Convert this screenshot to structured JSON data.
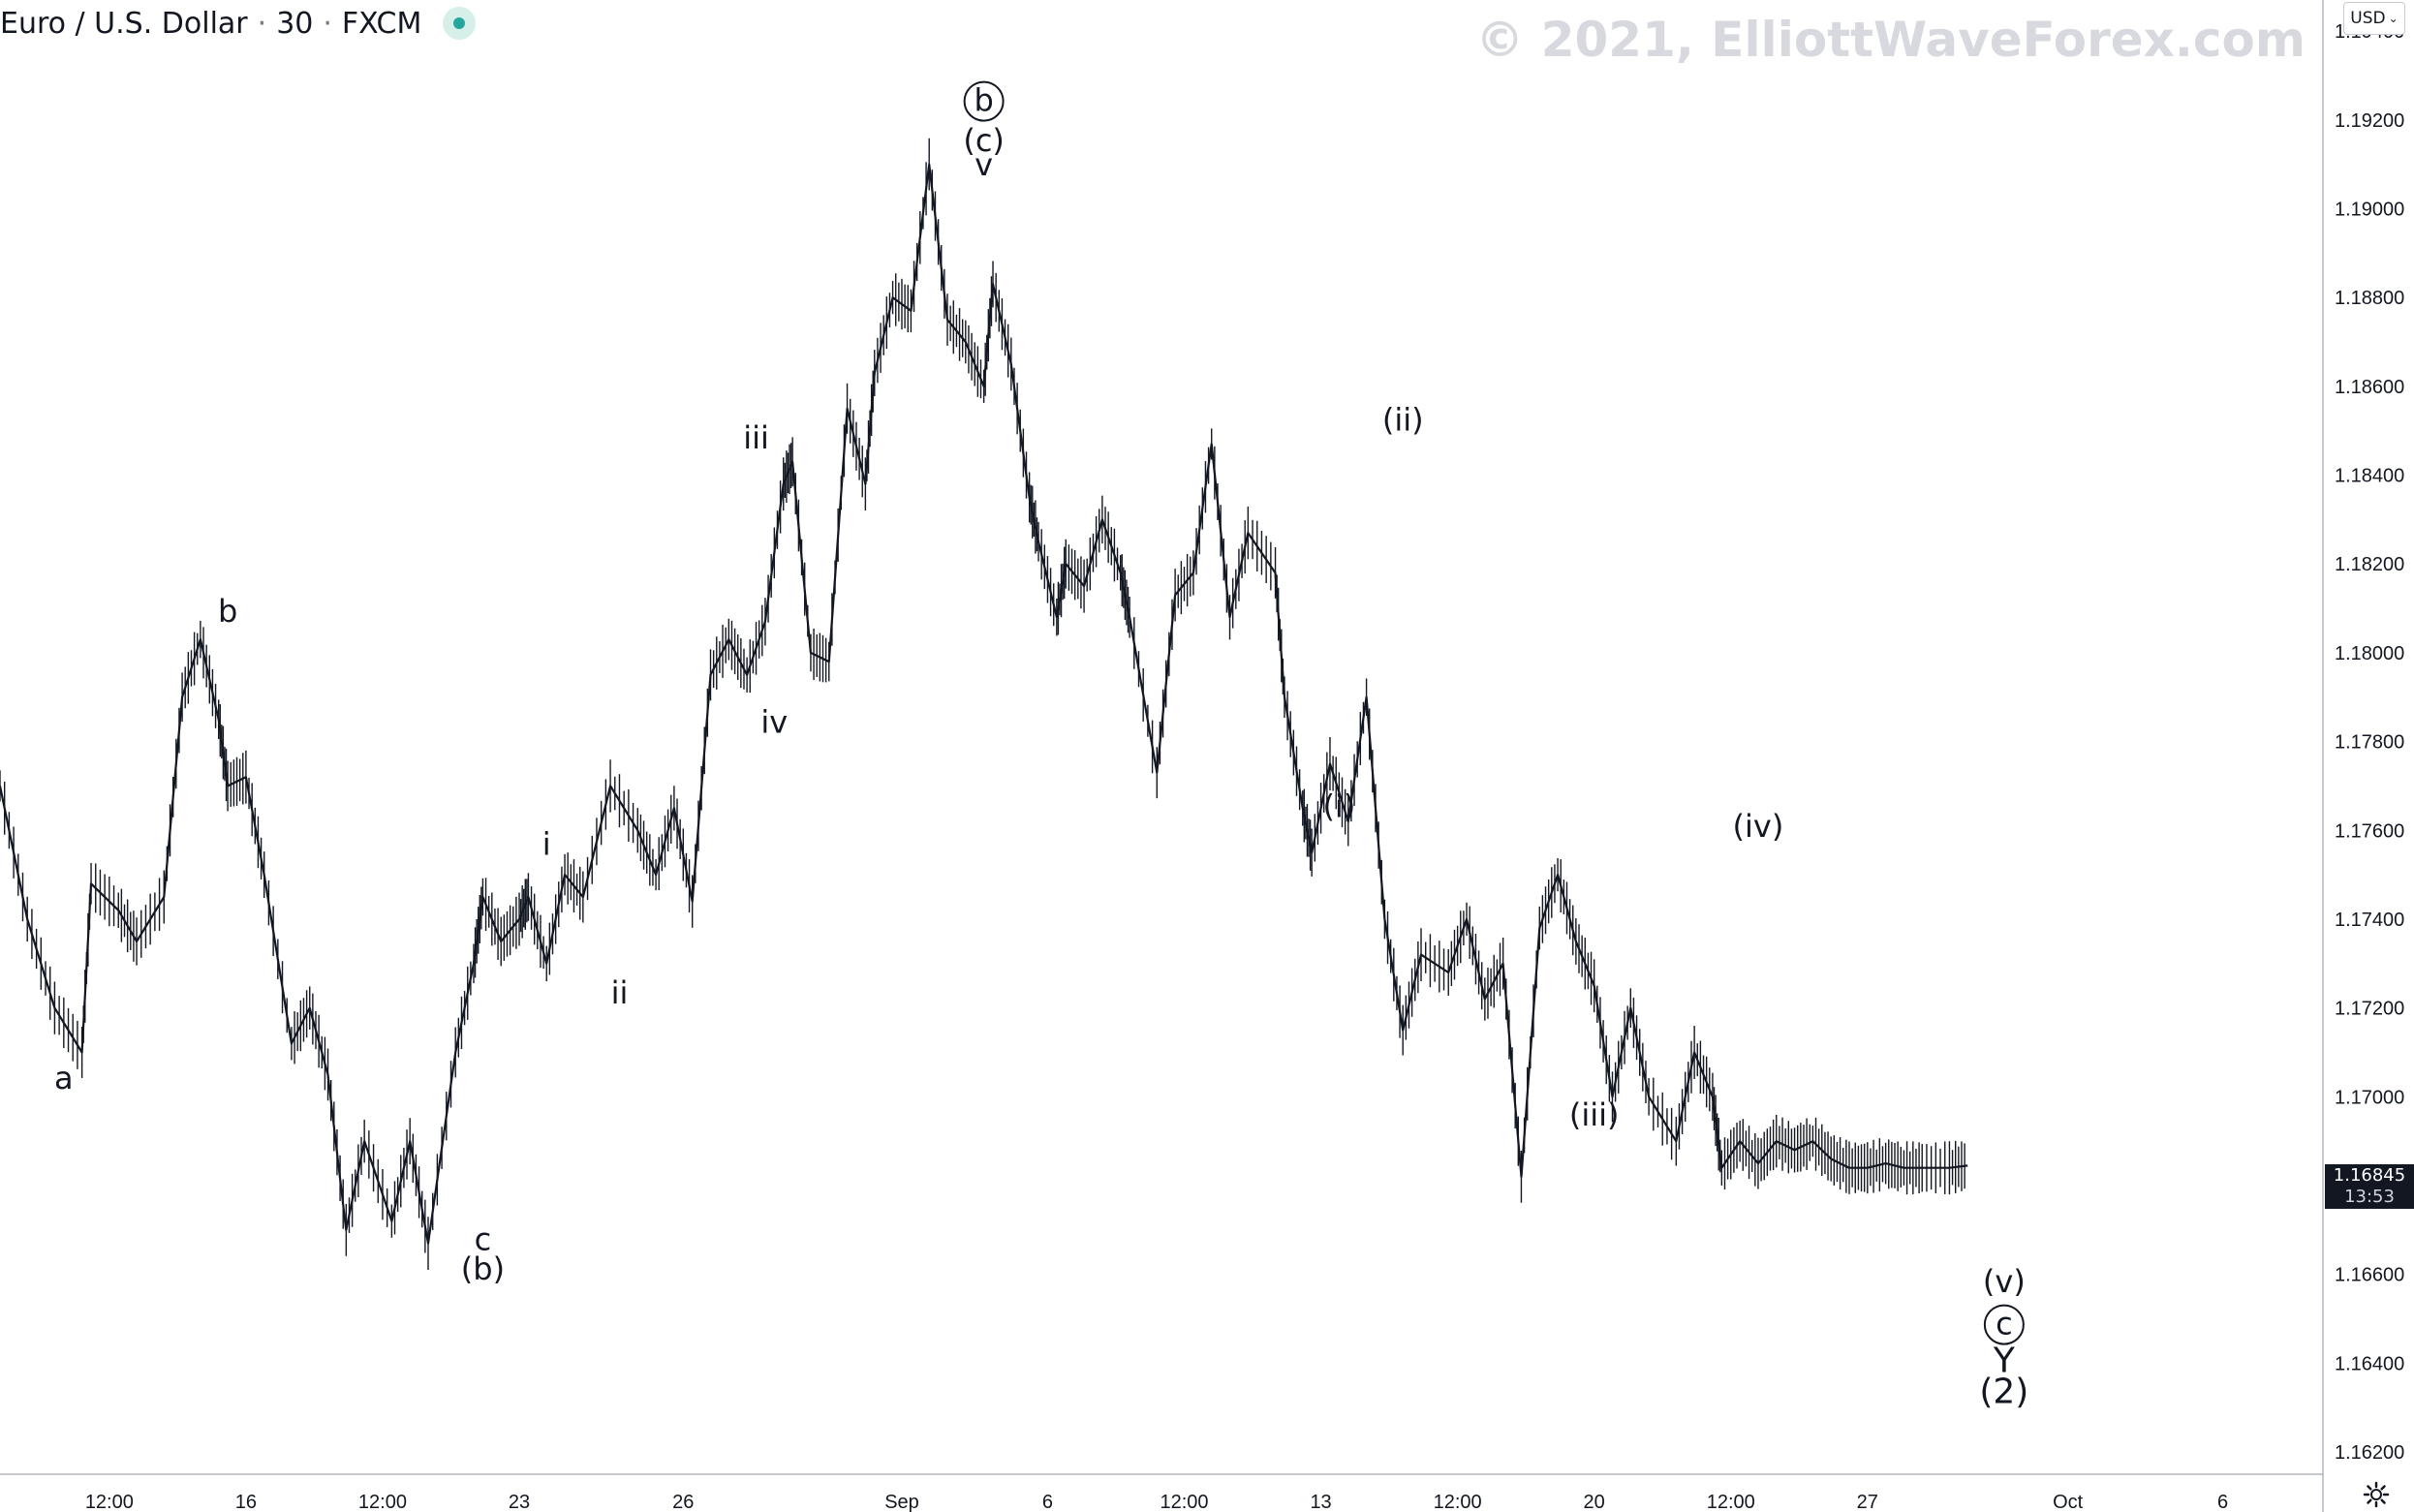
{
  "header": {
    "symbol": "Euro / U.S. Dollar",
    "interval": "30",
    "exchange": "FXCM"
  },
  "watermark": "© 2021, ElliottWaveForex.com",
  "currency_button": {
    "label": "USD",
    "icon": "chevron-down-icon"
  },
  "last_price": {
    "value": "1.16845",
    "countdown": "13:53"
  },
  "settings_icon": "gear-icon",
  "colors": {
    "candles": "#131722",
    "badge_bg": "#131722",
    "watermark": "#d7d9de",
    "axis_line": "#b2b5be",
    "status_dot": "#26a69a"
  },
  "chart_data": {
    "type": "line",
    "title": "Euro / U.S. Dollar · 30 · FXCM",
    "xlabel": "",
    "ylabel": "",
    "ylim": [
      1.1615,
      1.1947
    ],
    "y_ticks": [
      "1.19400",
      "1.19200",
      "1.19000",
      "1.18800",
      "1.18600",
      "1.18400",
      "1.18200",
      "1.18000",
      "1.17800",
      "1.17600",
      "1.17400",
      "1.17200",
      "1.17000",
      "1.16600",
      "1.16400",
      "1.16200"
    ],
    "x_ticks": [
      "12:00",
      "16",
      "12:00",
      "23",
      "26",
      "Sep",
      "6",
      "12:00",
      "13",
      "12:00",
      "20",
      "12:00",
      "27",
      "Oct",
      "6"
    ],
    "x_tick_index": [
      0.6,
      2.1,
      3.6,
      5.1,
      6.9,
      9.3,
      10.9,
      12.4,
      13.9,
      15.4,
      16.9,
      18.4,
      19.9,
      22.1,
      23.8
    ],
    "x_range": [
      -0.6,
      24.9
    ],
    "series": [
      {
        "name": "",
        "x": [
          -0.6,
          -0.3,
          0.0,
          0.3,
          0.4,
          0.7,
          0.9,
          1.2,
          1.4,
          1.6,
          1.8,
          1.9,
          2.1,
          2.3,
          2.6,
          2.8,
          3.0,
          3.2,
          3.4,
          3.7,
          3.9,
          4.1,
          4.4,
          4.6,
          4.7,
          4.9,
          5.1,
          5.2,
          5.4,
          5.6,
          5.8,
          6.1,
          6.4,
          6.6,
          6.8,
          7.0,
          7.2,
          7.4,
          7.6,
          7.8,
          8.0,
          8.1,
          8.3,
          8.5,
          8.7,
          8.9,
          9.0,
          9.2,
          9.4,
          9.6,
          9.8,
          10.0,
          10.2,
          10.3,
          10.5,
          10.7,
          10.8,
          11.0,
          11.1,
          11.3,
          11.5,
          11.7,
          11.8,
          12.1,
          12.3,
          12.5,
          12.7,
          12.9,
          13.1,
          13.4,
          13.5,
          13.7,
          13.8,
          14.0,
          14.2,
          14.4,
          14.6,
          14.8,
          15.0,
          15.3,
          15.5,
          15.7,
          15.9,
          16.1,
          16.3,
          16.5,
          16.7,
          16.9,
          17.1,
          17.3,
          17.5,
          17.8,
          18.0,
          18.2,
          18.3,
          18.5,
          18.7,
          18.9,
          19.1,
          19.3,
          19.5,
          19.7,
          19.9,
          20.1,
          20.3,
          20.5,
          20.8,
          21.0
        ],
        "values": [
          1.177,
          1.174,
          1.172,
          1.171,
          1.1748,
          1.1742,
          1.1735,
          1.1745,
          1.179,
          1.1803,
          1.1785,
          1.177,
          1.1772,
          1.175,
          1.1712,
          1.172,
          1.1705,
          1.167,
          1.169,
          1.1672,
          1.169,
          1.1667,
          1.171,
          1.173,
          1.1745,
          1.1735,
          1.174,
          1.1745,
          1.173,
          1.175,
          1.1745,
          1.177,
          1.176,
          1.175,
          1.1765,
          1.1744,
          1.1795,
          1.1803,
          1.1795,
          1.1807,
          1.1838,
          1.1843,
          1.18,
          1.1798,
          1.1855,
          1.1838,
          1.1863,
          1.188,
          1.1877,
          1.191,
          1.1875,
          1.187,
          1.186,
          1.1883,
          1.1865,
          1.1835,
          1.1825,
          1.1808,
          1.182,
          1.1815,
          1.183,
          1.1818,
          1.1808,
          1.1773,
          1.1813,
          1.1818,
          1.1847,
          1.1808,
          1.1827,
          1.1818,
          1.179,
          1.1765,
          1.1755,
          1.1775,
          1.1762,
          1.179,
          1.174,
          1.1715,
          1.1732,
          1.1728,
          1.174,
          1.1722,
          1.173,
          1.1682,
          1.1738,
          1.175,
          1.1735,
          1.1725,
          1.17,
          1.172,
          1.17,
          1.169,
          1.171,
          1.17,
          1.1684,
          1.169,
          1.1685,
          1.169,
          1.1688,
          1.169,
          1.1686,
          1.1684,
          1.1684,
          1.1685,
          1.1684,
          1.1684,
          1.1684,
          1.16845
        ]
      }
    ],
    "wave_labels": [
      {
        "text": "a",
        "x": 0.1,
        "y": 1.17018,
        "circled": false
      },
      {
        "text": "b",
        "x": 1.9,
        "y": 1.1807,
        "circled": false
      },
      {
        "text": "c",
        "x": 4.7,
        "y": 1.16655,
        "circled": false
      },
      {
        "text": "(b)",
        "x": 4.7,
        "y": 1.16588,
        "circled": false
      },
      {
        "text": "i",
        "x": 5.4,
        "y": 1.17545,
        "circled": false
      },
      {
        "text": "ii",
        "x": 6.2,
        "y": 1.1721,
        "circled": false
      },
      {
        "text": "iii",
        "x": 7.7,
        "y": 1.1846,
        "circled": false
      },
      {
        "text": "iv",
        "x": 7.9,
        "y": 1.1782,
        "circled": false
      },
      {
        "text": "b",
        "x": 10.2,
        "y": 1.1922,
        "circled": true
      },
      {
        "text": "(c)",
        "x": 10.2,
        "y": 1.1913,
        "circled": false
      },
      {
        "text": "v",
        "x": 10.2,
        "y": 1.19075,
        "circled": false
      },
      {
        "text": "(ii)",
        "x": 14.8,
        "y": 1.185,
        "circled": false
      },
      {
        "text": "(i)",
        "x": 14.1,
        "y": 1.1763,
        "circled": false
      },
      {
        "text": "(iii)",
        "x": 16.9,
        "y": 1.16935,
        "circled": false
      },
      {
        "text": "(iv)",
        "x": 18.7,
        "y": 1.17585,
        "circled": false
      },
      {
        "text": "(v)",
        "x": 21.4,
        "y": 1.1656,
        "circled": false
      },
      {
        "text": "c",
        "x": 21.4,
        "y": 1.16465,
        "circled": true
      },
      {
        "text": "Y",
        "x": 21.4,
        "y": 1.1638,
        "circled": false
      },
      {
        "text": "(2)",
        "x": 21.4,
        "y": 1.1631,
        "circled": false
      }
    ]
  }
}
